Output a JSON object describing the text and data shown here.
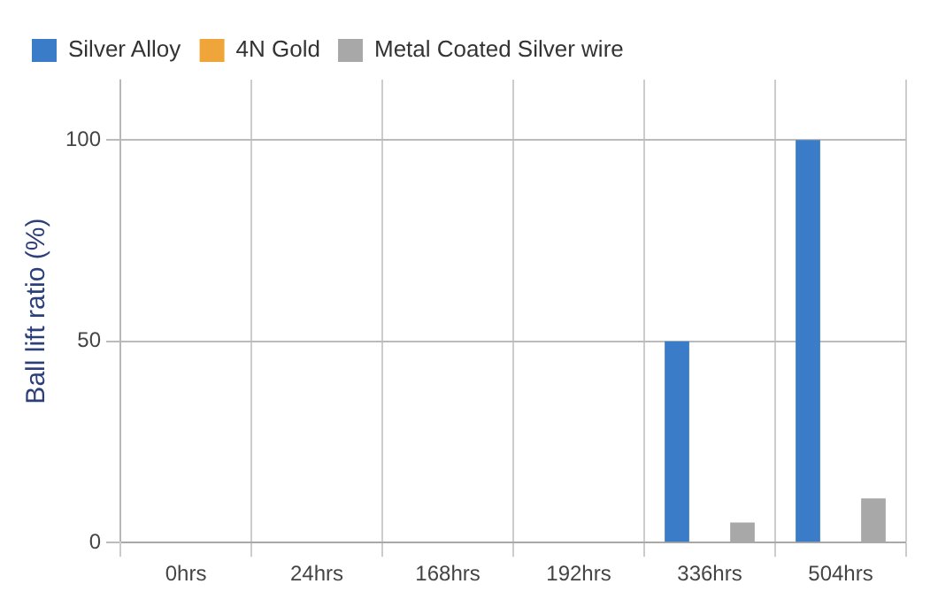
{
  "chart_data": {
    "type": "bar",
    "ylabel": "Ball lift ratio (%)",
    "categories": [
      "0hrs",
      "24hrs",
      "168hrs",
      "192hrs",
      "336hrs",
      "504hrs"
    ],
    "series": [
      {
        "name": "Silver Alloy",
        "color": "#3a7cc8",
        "values": [
          0,
          0,
          0,
          0,
          50,
          100
        ]
      },
      {
        "name": "4N Gold",
        "color": "#f0a53a",
        "values": [
          0,
          0,
          0,
          0,
          0,
          0
        ]
      },
      {
        "name": "Metal Coated Silver wire",
        "color": "#a8a8a8",
        "values": [
          0,
          0,
          0,
          0,
          5,
          11
        ]
      }
    ],
    "ylim": [
      0,
      115
    ],
    "yticks": [
      0,
      50,
      100
    ],
    "grid": true,
    "legend": "top left"
  }
}
